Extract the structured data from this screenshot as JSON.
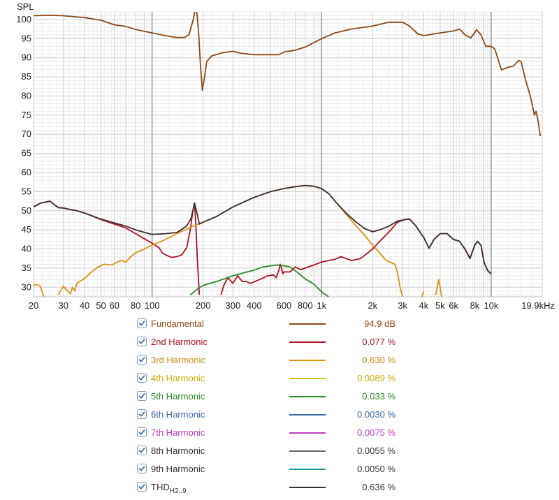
{
  "chart_data": {
    "type": "line",
    "ylabel": "SPL",
    "xscale": "log",
    "xlim": [
      20,
      20000
    ],
    "ylim": [
      27.5,
      102
    ],
    "grid": true,
    "x_ticks": [
      {
        "v": 20,
        "label": "20"
      },
      {
        "v": 30,
        "label": "30"
      },
      {
        "v": 40,
        "label": "40"
      },
      {
        "v": 50,
        "label": "50"
      },
      {
        "v": 60,
        "label": "60"
      },
      {
        "v": 80,
        "label": "80"
      },
      {
        "v": 100,
        "label": "100"
      },
      {
        "v": 200,
        "label": "200"
      },
      {
        "v": 300,
        "label": "300"
      },
      {
        "v": 400,
        "label": "400"
      },
      {
        "v": 600,
        "label": "600"
      },
      {
        "v": 800,
        "label": "800"
      },
      {
        "v": 1000,
        "label": "1k"
      },
      {
        "v": 2000,
        "label": "2k"
      },
      {
        "v": 3000,
        "label": "3k"
      },
      {
        "v": 4000,
        "label": "4k"
      },
      {
        "v": 5000,
        "label": "5k"
      },
      {
        "v": 6000,
        "label": "6k"
      },
      {
        "v": 8000,
        "label": "8k"
      },
      {
        "v": 10000,
        "label": "10k"
      },
      {
        "v": 19900,
        "label": "19.9kHz"
      }
    ],
    "y_ticks": [
      30,
      35,
      40,
      45,
      50,
      55,
      60,
      65,
      70,
      75,
      80,
      85,
      90,
      95,
      100
    ],
    "series": [
      {
        "name": "Fundamental",
        "color": "#8b4a14",
        "points": [
          [
            20,
            101
          ],
          [
            25,
            101.1
          ],
          [
            30,
            101
          ],
          [
            40,
            100.5
          ],
          [
            50,
            99.8
          ],
          [
            60,
            98.6
          ],
          [
            70,
            98.2
          ],
          [
            80,
            97.4
          ],
          [
            100,
            96.5
          ],
          [
            120,
            95.8
          ],
          [
            140,
            95.3
          ],
          [
            155,
            95.3
          ],
          [
            165,
            96
          ],
          [
            175,
            100
          ],
          [
            182,
            104
          ],
          [
            188,
            97
          ],
          [
            193,
            88
          ],
          [
            198,
            81.5
          ],
          [
            204,
            85
          ],
          [
            210,
            89
          ],
          [
            225,
            90.5
          ],
          [
            260,
            91.3
          ],
          [
            300,
            91.7
          ],
          [
            330,
            91.2
          ],
          [
            400,
            90.8
          ],
          [
            500,
            90.8
          ],
          [
            560,
            90.8
          ],
          [
            600,
            91.5
          ],
          [
            700,
            92
          ],
          [
            800,
            92.8
          ],
          [
            1000,
            95
          ],
          [
            1200,
            96.5
          ],
          [
            1500,
            97.5
          ],
          [
            2000,
            98.3
          ],
          [
            2500,
            99.3
          ],
          [
            3000,
            99.3
          ],
          [
            3300,
            98.3
          ],
          [
            3700,
            96.2
          ],
          [
            4000,
            95.8
          ],
          [
            5000,
            96.5
          ],
          [
            6000,
            97
          ],
          [
            6500,
            97.5
          ],
          [
            7000,
            96
          ],
          [
            7600,
            95.2
          ],
          [
            8200,
            97.3
          ],
          [
            8700,
            96
          ],
          [
            9300,
            93
          ],
          [
            10000,
            93
          ],
          [
            10500,
            92.3
          ],
          [
            11500,
            86.8
          ],
          [
            12500,
            87.5
          ],
          [
            13500,
            87.8
          ],
          [
            14500,
            89.3
          ],
          [
            15000,
            89
          ],
          [
            16000,
            84
          ],
          [
            17000,
            80
          ],
          [
            18000,
            75
          ],
          [
            18400,
            76
          ],
          [
            18900,
            73.5
          ],
          [
            19500,
            69.5
          ]
        ]
      },
      {
        "name": "2nd Harmonic",
        "color": "#b0101e",
        "points": [
          [
            20,
            51
          ],
          [
            22,
            52
          ],
          [
            25,
            52.5
          ],
          [
            28,
            50.8
          ],
          [
            30,
            50.7
          ],
          [
            33,
            50.3
          ],
          [
            36,
            50
          ],
          [
            40,
            49.4
          ],
          [
            50,
            47.7
          ],
          [
            60,
            46.5
          ],
          [
            70,
            45.5
          ],
          [
            80,
            44
          ],
          [
            100,
            41.5
          ],
          [
            110,
            40.3
          ],
          [
            115,
            39
          ],
          [
            120,
            38.5
          ],
          [
            130,
            37.8
          ],
          [
            140,
            38
          ],
          [
            150,
            38.5
          ],
          [
            160,
            40.3
          ],
          [
            168,
            45
          ],
          [
            174,
            50
          ],
          [
            178,
            52
          ],
          [
            181,
            47
          ],
          [
            185,
            37
          ],
          [
            190,
            28
          ]
        ]
      },
      {
        "name": "2nd Harmonic",
        "color": "#b0101e",
        "points": [
          [
            255,
            28
          ],
          [
            265,
            30.5
          ],
          [
            280,
            32.5
          ],
          [
            300,
            31
          ],
          [
            320,
            33
          ],
          [
            340,
            31.5
          ],
          [
            360,
            31.5
          ],
          [
            380,
            31
          ],
          [
            430,
            32
          ],
          [
            480,
            33
          ],
          [
            520,
            33.2
          ],
          [
            540,
            32.5
          ],
          [
            560,
            34.5
          ],
          [
            570,
            36
          ],
          [
            580,
            35
          ],
          [
            590,
            33.5
          ],
          [
            600,
            34
          ],
          [
            650,
            34
          ],
          [
            700,
            35.3
          ],
          [
            750,
            34.6
          ],
          [
            800,
            35
          ],
          [
            900,
            35.8
          ],
          [
            1000,
            36.6
          ],
          [
            1200,
            37.3
          ],
          [
            1300,
            38
          ],
          [
            1500,
            37
          ],
          [
            1700,
            37.5
          ],
          [
            2000,
            40
          ],
          [
            2200,
            42
          ],
          [
            2500,
            44.5
          ],
          [
            2800,
            47
          ],
          [
            3100,
            47.7
          ],
          [
            3300,
            47.8
          ],
          [
            3600,
            46
          ],
          [
            4000,
            43
          ],
          [
            4300,
            40.2
          ],
          [
            4600,
            42.5
          ],
          [
            5000,
            44
          ],
          [
            5500,
            44
          ],
          [
            6000,
            42.5
          ],
          [
            6500,
            42
          ],
          [
            7000,
            40
          ],
          [
            7500,
            37.5
          ],
          [
            8000,
            41
          ],
          [
            8300,
            42
          ],
          [
            8700,
            41
          ],
          [
            9100,
            36.3
          ],
          [
            9600,
            34.2
          ],
          [
            10000,
            33.5
          ]
        ]
      },
      {
        "name": "3rd Harmonic",
        "color": "#dc9410",
        "points": [
          [
            20,
            30.5
          ],
          [
            21,
            30.7
          ],
          [
            22,
            30.2
          ],
          [
            23,
            27.5
          ]
        ]
      },
      {
        "name": "3rd Harmonic",
        "color": "#dc9410",
        "points": [
          [
            28,
            28
          ],
          [
            30,
            30.3
          ],
          [
            31,
            29.5
          ],
          [
            33,
            28.3
          ],
          [
            34,
            30
          ],
          [
            35,
            29
          ],
          [
            36,
            31
          ],
          [
            40,
            32.3
          ],
          [
            44,
            34
          ],
          [
            48,
            35.3
          ],
          [
            52,
            36
          ],
          [
            58,
            35.8
          ],
          [
            62,
            36.5
          ],
          [
            66,
            37
          ],
          [
            70,
            36.5
          ],
          [
            75,
            38
          ],
          [
            80,
            39
          ],
          [
            90,
            40
          ],
          [
            100,
            41
          ],
          [
            120,
            42.5
          ],
          [
            140,
            44
          ],
          [
            160,
            45.2
          ],
          [
            180,
            46.2
          ],
          [
            200,
            47
          ],
          [
            240,
            48.5
          ],
          [
            300,
            51
          ],
          [
            400,
            53.5
          ],
          [
            500,
            55
          ],
          [
            600,
            55.8
          ],
          [
            700,
            56.3
          ],
          [
            800,
            56.6
          ],
          [
            900,
            56.4
          ],
          [
            1000,
            55.8
          ],
          [
            1100,
            54.5
          ],
          [
            1200,
            52.5
          ],
          [
            1400,
            49
          ],
          [
            1600,
            46
          ],
          [
            1800,
            43.5
          ],
          [
            2000,
            41
          ],
          [
            2200,
            39
          ],
          [
            2400,
            37
          ],
          [
            2700,
            36
          ],
          [
            2800,
            34
          ],
          [
            2900,
            30
          ],
          [
            3000,
            27.5
          ]
        ]
      },
      {
        "name": "3rd Harmonic",
        "color": "#dc9410",
        "points": [
          [
            3900,
            27.5
          ],
          [
            4000,
            29
          ]
        ]
      },
      {
        "name": "3rd Harmonic",
        "color": "#dc9410",
        "points": [
          [
            4700,
            28
          ],
          [
            4900,
            32
          ],
          [
            5000,
            30
          ],
          [
            5100,
            27.5
          ]
        ]
      },
      {
        "name": "5th Harmonic",
        "color": "#2a8a24",
        "points": [
          [
            168,
            28
          ],
          [
            185,
            29.5
          ],
          [
            200,
            30.5
          ],
          [
            240,
            31.5
          ],
          [
            270,
            32.3
          ],
          [
            300,
            33
          ],
          [
            350,
            33.8
          ],
          [
            400,
            34.5
          ],
          [
            450,
            35.3
          ],
          [
            500,
            35.6
          ],
          [
            550,
            35.8
          ],
          [
            600,
            35.6
          ],
          [
            650,
            35.3
          ],
          [
            700,
            34.3
          ],
          [
            800,
            32.2
          ],
          [
            900,
            30.8
          ],
          [
            1000,
            28.8
          ],
          [
            1100,
            27.5
          ]
        ]
      },
      {
        "name": "THD",
        "color": "#3e2d2d",
        "points": [
          [
            20,
            51
          ],
          [
            22,
            52
          ],
          [
            25,
            52.5
          ],
          [
            28,
            50.8
          ],
          [
            30,
            50.7
          ],
          [
            33,
            50.3
          ],
          [
            36,
            50
          ],
          [
            40,
            49.4
          ],
          [
            50,
            47.8
          ],
          [
            60,
            46.8
          ],
          [
            70,
            46
          ],
          [
            80,
            45
          ],
          [
            100,
            43.8
          ],
          [
            120,
            44
          ],
          [
            140,
            44.3
          ],
          [
            160,
            46
          ],
          [
            170,
            48
          ],
          [
            178,
            52
          ],
          [
            185,
            49
          ],
          [
            190,
            46.5
          ],
          [
            200,
            47
          ],
          [
            240,
            48.5
          ],
          [
            300,
            51
          ],
          [
            400,
            53.5
          ],
          [
            500,
            55
          ],
          [
            600,
            55.8
          ],
          [
            700,
            56.3
          ],
          [
            800,
            56.6
          ],
          [
            900,
            56.4
          ],
          [
            1000,
            55.8
          ],
          [
            1100,
            54.5
          ],
          [
            1200,
            52.5
          ],
          [
            1400,
            49.3
          ],
          [
            1600,
            47
          ],
          [
            1800,
            45.3
          ],
          [
            2000,
            44.5
          ],
          [
            2200,
            45
          ],
          [
            2500,
            46
          ],
          [
            2800,
            47.3
          ],
          [
            3100,
            47.7
          ],
          [
            3300,
            47.8
          ],
          [
            3600,
            46
          ],
          [
            4000,
            43
          ],
          [
            4300,
            40.2
          ],
          [
            4600,
            42.5
          ],
          [
            5000,
            44
          ],
          [
            5500,
            44
          ],
          [
            6000,
            42.5
          ],
          [
            6500,
            42
          ],
          [
            7000,
            40
          ],
          [
            7500,
            37.5
          ],
          [
            8000,
            41
          ],
          [
            8300,
            42
          ],
          [
            8700,
            41
          ],
          [
            9100,
            36.3
          ],
          [
            9600,
            34.2
          ],
          [
            10000,
            33.5
          ]
        ]
      }
    ],
    "legend": [
      {
        "label": "Fundamental",
        "sub": "",
        "color": "#8b4a14",
        "value": "94.9 dB"
      },
      {
        "label": "2nd Harmonic",
        "sub": "",
        "color": "#b0101e",
        "value": "0.077 %"
      },
      {
        "label": "3rd Harmonic",
        "sub": "",
        "color": "#dc9410",
        "value": "0.630 %"
      },
      {
        "label": "4th Harmonic",
        "sub": "",
        "color": "#d9c312",
        "value": "0.0089 %"
      },
      {
        "label": "5th Harmonic",
        "sub": "",
        "color": "#2a8a24",
        "value": "0.033 %"
      },
      {
        "label": "6th Harmonic",
        "sub": "",
        "color": "#3b68a6",
        "value": "0.0030 %"
      },
      {
        "label": "7th Harmonic",
        "sub": "",
        "color": "#c23cc2",
        "value": "0.0075 %"
      },
      {
        "label": "8th Harmonic",
        "sub": "",
        "color": "#666666",
        "value": "0.0055 %"
      },
      {
        "label": "9th Harmonic",
        "sub": "",
        "color": "#1a9e9e",
        "value": "0.0050 %"
      },
      {
        "label": "THD",
        "sub": "H2..9",
        "color": "#333333",
        "value": "0.636 %"
      }
    ]
  }
}
